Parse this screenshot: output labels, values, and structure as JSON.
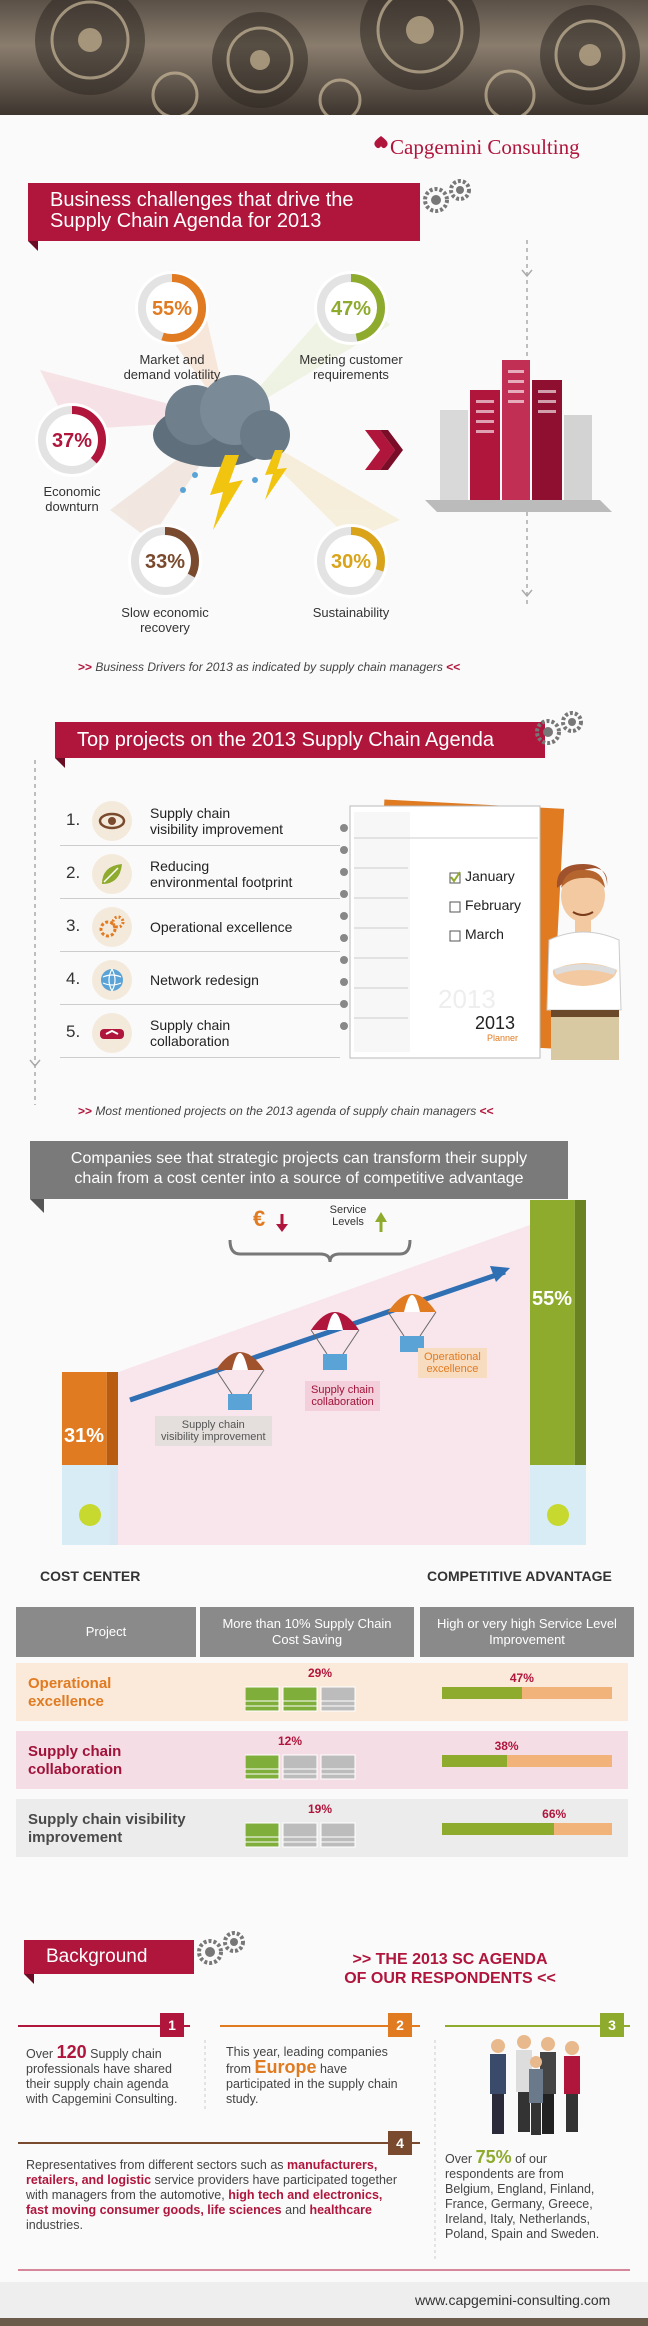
{
  "brand": {
    "name": "Capgemini Consulting",
    "website": "www.capgemini-consulting.com"
  },
  "section1": {
    "title_line1": "Business challenges that drive the",
    "title_line2": "Supply Chain Agenda for 2013",
    "note_prefix": ">>",
    "note_text": "Business Drivers for 2013 as indicated by supply chain managers",
    "note_suffix": "<<"
  },
  "section2": {
    "title": "Top projects on the 2013 Supply Chain Agenda",
    "projects": [
      {
        "num": "1.",
        "line1": "Supply chain",
        "line2": "visibility improvement"
      },
      {
        "num": "2.",
        "line1": "Reducing",
        "line2": "environmental footprint"
      },
      {
        "num": "3.",
        "line1": "Operational excellence",
        "line2": ""
      },
      {
        "num": "4.",
        "line1": "Network redesign",
        "line2": ""
      },
      {
        "num": "5.",
        "line1": "Supply chain",
        "line2": "collaboration"
      }
    ],
    "planner": {
      "checks": [
        "January",
        "February",
        "March"
      ],
      "year": "2013",
      "word": "Planner"
    },
    "note_prefix": ">>",
    "note_text": "Most mentioned projects on the 2013 agenda of supply chain managers",
    "note_suffix": "<<"
  },
  "section3": {
    "title_line1": "Companies see that strategic projects can transform their supply",
    "title_line2": "chain from a cost center into a source of competitive advantage",
    "service_levels": "Service Levels",
    "euro": "€",
    "left_pct": "31%",
    "right_pct": "55%",
    "left_label": "COST CENTER",
    "right_label": "COMPETITIVE ADVANTAGE",
    "parachutes": [
      {
        "label1": "Supply chain",
        "label2": "visibility improvement"
      },
      {
        "label1": "Supply chain",
        "label2": "collaboration"
      },
      {
        "label1": "Operational",
        "label2": "excellence"
      }
    ]
  },
  "table": {
    "headers": [
      "Project",
      "More than 10% Supply Chain Cost Saving",
      "High or very high Service Level Improvement"
    ],
    "rows": [
      {
        "label": "Operational excellence",
        "saving": "29%",
        "service": "47%",
        "color": "#e07b22"
      },
      {
        "label": "Supply chain collaboration",
        "saving": "12%",
        "service": "38%",
        "color": "#a1123a"
      },
      {
        "label": "Supply chain visibility improvement",
        "saving": "19%",
        "service": "66%",
        "color": "#4a4a4a"
      }
    ]
  },
  "background": {
    "title": "Background",
    "agenda_line1": ">> THE 2013 SC AGENDA",
    "agenda_line2": "OF OUR RESPONDENTS <<",
    "b1": {
      "num": "1",
      "pre": "Over",
      "big": "120",
      "text": "Supply chain professionals have shared their supply chain agenda with Capgemini Consulting."
    },
    "b2": {
      "num": "2",
      "pre": "This year, leading companies from",
      "big": "Europe",
      "text": "have participated in the supply chain study."
    },
    "b3": {
      "num": "3",
      "pre": "Over",
      "big": "75%",
      "text": "of our respondents are from Belgium, England, Finland, France, Germany, Greece, Ireland, Italy, Netherlands, Poland, Spain and Sweden."
    },
    "b4": {
      "num": "4",
      "text1": "Representatives from different sectors such as",
      "bold1": "manufacturers, retailers, and logistic",
      "text2": "service providers have participated together with managers from the automotive,",
      "bold2": "high tech and electronics, fast moving consumer goods, life sciences",
      "text3": "and",
      "bold3": "healthcare",
      "text4": "industries."
    }
  },
  "chart_data": [
    {
      "type": "pie",
      "title": "Business challenges that drive the Supply Chain Agenda for 2013",
      "categories": [
        "Market and demand volatility",
        "Meeting customer requirements",
        "Economic downturn",
        "Slow economic recovery",
        "Sustainability"
      ],
      "values": [
        55,
        47,
        37,
        33,
        30
      ],
      "colors": [
        "#e07b22",
        "#8eab2e",
        "#b0153c",
        "#7a4a2e",
        "#d9a41a"
      ],
      "labels": [
        "55%",
        "47%",
        "37%",
        "33%",
        "30%"
      ],
      "captions": [
        [
          "Market and",
          "demand volatility"
        ],
        [
          "Meeting customer",
          "requirements"
        ],
        [
          "Economic",
          "downturn"
        ],
        [
          "Slow economic",
          "recovery"
        ],
        [
          "Sustainability",
          ""
        ]
      ]
    },
    {
      "type": "bar",
      "title": "",
      "categories": [
        "COST CENTER",
        "COMPETITIVE ADVANTAGE"
      ],
      "values": [
        31,
        55
      ]
    },
    {
      "type": "bar",
      "title": "More than 10% Supply Chain Cost Saving",
      "categories": [
        "Operational excellence",
        "Supply chain collaboration",
        "Supply chain visibility improvement"
      ],
      "values": [
        29,
        12,
        19
      ]
    },
    {
      "type": "bar",
      "title": "High or very high Service Level Improvement",
      "categories": [
        "Operational excellence",
        "Supply chain collaboration",
        "Supply chain visibility improvement"
      ],
      "values": [
        47,
        38,
        66
      ]
    }
  ]
}
